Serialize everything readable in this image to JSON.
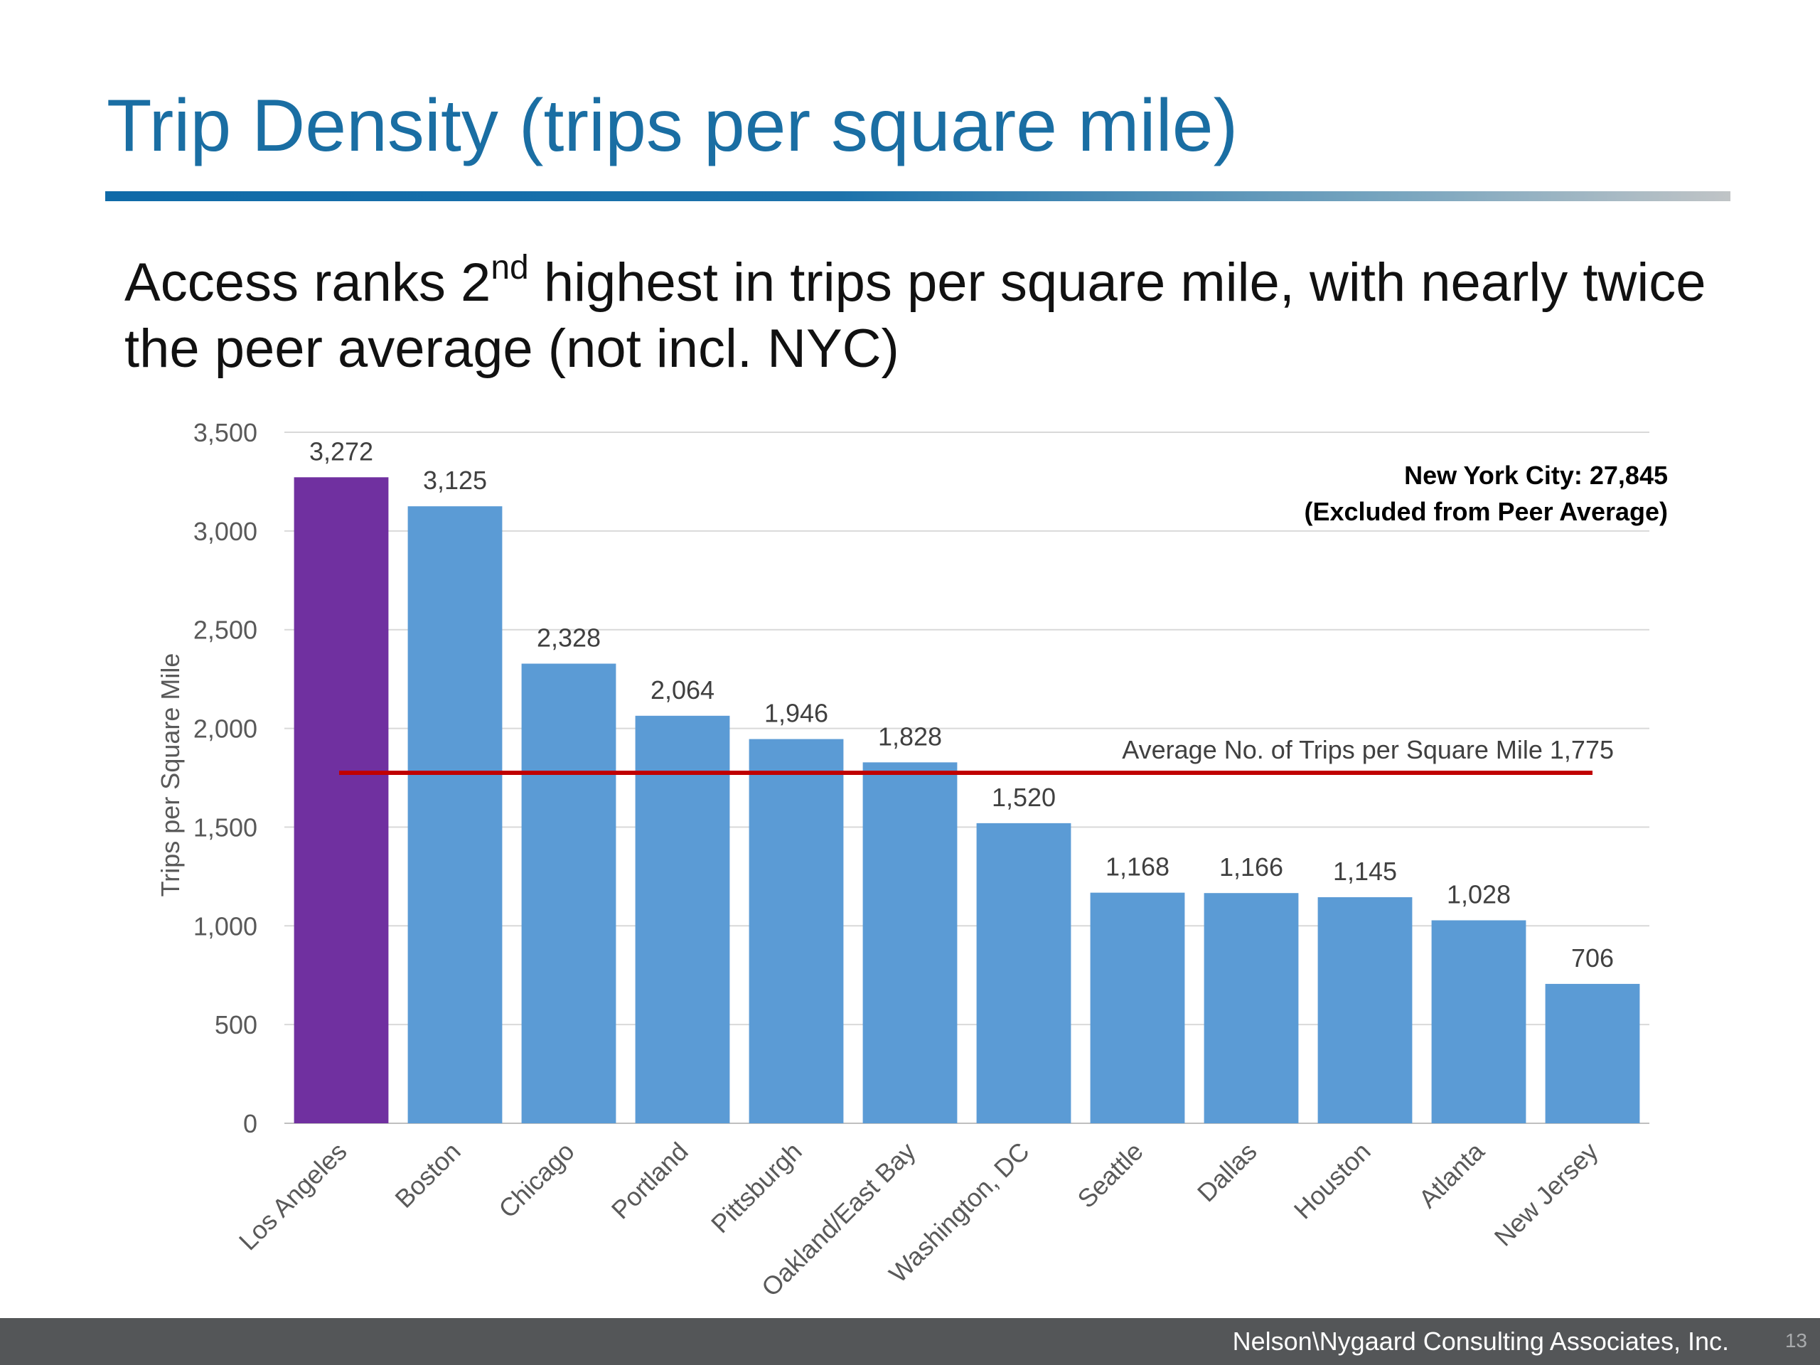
{
  "slide": {
    "title": "Trip Density (trips per square mile)",
    "subtitle_pre": "Access ranks 2",
    "subtitle_sup": "nd",
    "subtitle_post": " highest in trips per square mile, with nearly twice the peer average (not incl. NYC)"
  },
  "chart_data": {
    "type": "bar",
    "ylabel": "Trips per Square Mile",
    "xlabel": "",
    "ylim": [
      0,
      3500
    ],
    "yticks": [
      0,
      500,
      1000,
      1500,
      2000,
      2500,
      3000,
      3500
    ],
    "ytick_labels": [
      "0",
      "500",
      "1,000",
      "1,500",
      "2,000",
      "2,500",
      "3,000",
      "3,500"
    ],
    "grid": true,
    "categories": [
      "Los Angeles",
      "Boston",
      "Chicago",
      "Portland",
      "Pittsburgh",
      "Oakland/East Bay",
      "Washington, DC",
      "Seattle",
      "Dallas",
      "Houston",
      "Atlanta",
      "New Jersey"
    ],
    "values": [
      3272,
      3125,
      2328,
      2064,
      1946,
      1828,
      1520,
      1168,
      1166,
      1145,
      1028,
      706
    ],
    "value_labels": [
      "3,272",
      "3,125",
      "2,328",
      "2,064",
      "1,946",
      "1,828",
      "1,520",
      "1,168",
      "1,166",
      "1,145",
      "1,028",
      "706"
    ],
    "colors": [
      "#7030a0",
      "#5b9bd5",
      "#5b9bd5",
      "#5b9bd5",
      "#5b9bd5",
      "#5b9bd5",
      "#5b9bd5",
      "#5b9bd5",
      "#5b9bd5",
      "#5b9bd5",
      "#5b9bd5",
      "#5b9bd5"
    ],
    "average_line": {
      "value": 1775,
      "label": "Average No. of Trips per Square Mile 1,775",
      "color": "#c00000"
    },
    "annotation": {
      "line1": "New York City: 27,845",
      "line2": "(Excluded from Peer Average)"
    }
  },
  "footer": {
    "company": "Nelson\\Nygaard Consulting Associates, Inc.",
    "page": "13"
  }
}
